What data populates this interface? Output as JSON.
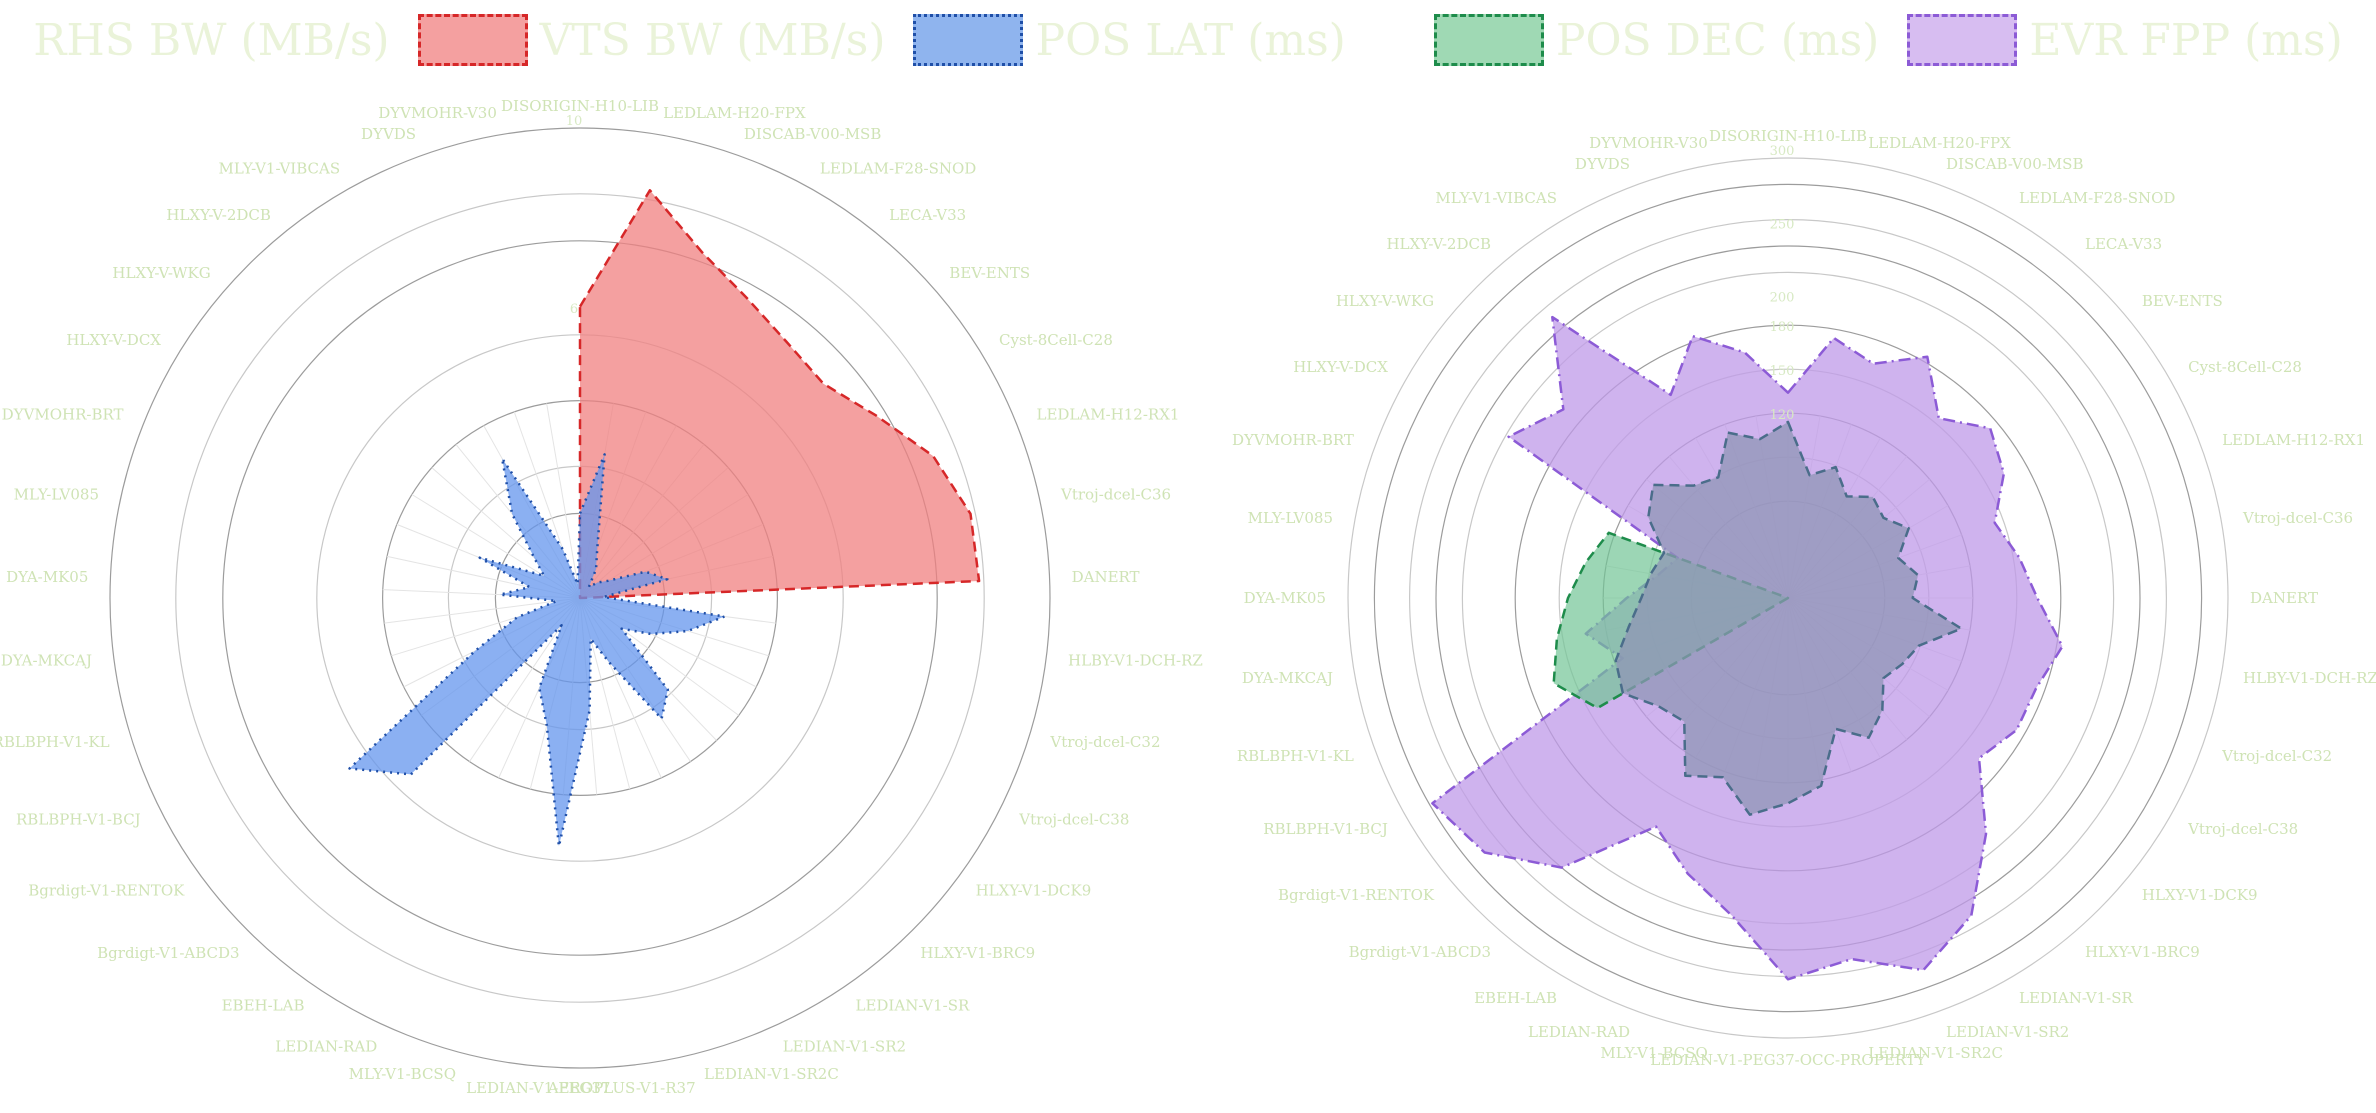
{
  "colors": {
    "series_red": "#f08080",
    "series_red_line": "#d62728",
    "series_blue": "#6495ed",
    "series_blue_line": "#1f4fa8",
    "series_green": "#72c495",
    "series_green_line": "#1e8c4b",
    "series_purple": "#bf99e8",
    "series_purple_line": "#8c5bd6",
    "grid": "#bdbdbd",
    "label_text": "#cfe3b5"
  },
  "legend": [
    {
      "label": "RHS BW (MB/s)",
      "color_key": "red",
      "swatch": false
    },
    {
      "label": "VTS BW (MB/s)",
      "color_key": "red",
      "swatch": true
    },
    {
      "label": "POS LAT (ms)",
      "color_key": "blue",
      "swatch": true
    },
    {
      "label": "POS DEC (ms)",
      "color_key": "green",
      "swatch": true
    },
    {
      "label": "EVR FPP (ms)",
      "color_key": "purple",
      "swatch": true
    }
  ],
  "chart_data": [
    {
      "type": "radar",
      "title": "",
      "categories": [
        "DISORIGIN-H10-LIB",
        "LEDLAM-H20-FPX",
        "DISCAB-V00-MSB",
        "LEDLAM-F28-SNOD",
        "LECA-V33",
        "BEV-ENTS",
        "Cyst-8Cell-C28",
        "LEDLAM-H12-RX1",
        "Vtroj-dcel-C36",
        "DANERT",
        "HLBY-V1-DCH-RZ",
        "Vtroj-dcel-C32",
        "Vtroj-dcel-C38",
        "HLXY-V1-DCK9",
        "HLXY-V1-BRC9",
        "LEDIAN-V1-SR",
        "LEDIAN-V1-SR2",
        "LEDIAN-V1-SR2C",
        "AEROPLUS-V1-R37",
        "LEDIAN-V1-PEG37",
        "MLY-V1-BCSQ",
        "LEDIAN-RAD",
        "EBEH-LAB",
        "Bgrdigt-V1-ABCD3",
        "Bgrdigt-V1-RENTOK",
        "RBLBPH-V1-BCJ",
        "RBLBPH-V1-KL",
        "DYA-MKCAJ",
        "DYA-MK05",
        "MLY-LV085",
        "DYVMOHR-BRT",
        "HLXY-V-DCX",
        "HLXY-V-WKG",
        "HLXY-V-2DCB",
        "MLY-V1-VIBCAS",
        "DYVDS",
        "DYVMOHR-V30"
      ],
      "rlim": [
        0,
        10
      ],
      "rticks": [
        {
          "value": 6,
          "label": "6"
        },
        {
          "value": 10,
          "label": "10"
        }
      ],
      "grid": true,
      "series": [
        {
          "name": "VTS BW (MB/s)",
          "color_key": "red",
          "values": [
            6.2,
            8.8,
            7.8,
            7.3,
            7.0,
            6.9,
            7.4,
            8.1,
            8.5,
            8.5,
            0,
            0,
            0,
            0,
            0,
            0,
            0,
            0,
            0,
            0,
            0,
            0,
            0,
            0,
            0,
            0,
            0,
            0,
            0,
            0,
            0,
            0,
            0,
            0,
            0,
            0,
            0
          ]
        },
        {
          "name": "POS LAT (ms)",
          "color_key": "blue",
          "values": [
            1.8,
            3.1,
            1.1,
            0.7,
            0.3,
            0.5,
            0.7,
            1.5,
            1.9,
            0.5,
            3.1,
            2.4,
            1.7,
            1.1,
            2.7,
            3.1,
            1.5,
            0.9,
            2.4,
            5.3,
            2.8,
            2.1,
            0.7,
            5.2,
            6.1,
            2.5,
            1.4,
            0.5,
            1.7,
            1.1,
            2.3,
            0.9,
            1.3,
            2.3,
            3.4,
            1.1,
            0.3
          ]
        }
      ]
    },
    {
      "type": "radar",
      "title": "",
      "categories": [
        "DISORIGIN-H10-LIB",
        "LEDLAM-H20-FPX",
        "DISCAB-V00-MSB",
        "LEDLAM-F28-SNOD",
        "LECA-V33",
        "BEV-ENTS",
        "Cyst-8Cell-C28",
        "LEDLAM-H12-RX1",
        "Vtroj-dcel-C36",
        "DANERT",
        "HLBY-V1-DCH-RZ",
        "Vtroj-dcel-C32",
        "Vtroj-dcel-C38",
        "HLXY-V1-DCK9",
        "HLXY-V1-BRC9",
        "LEDIAN-V1-SR",
        "LEDIAN-V1-SR2",
        "LEDIAN-V1-SR2C",
        "LEDIAN-V1-PEG37-OCC-PROPERTY",
        "MLY-V1-BCSQ",
        "LEDIAN-RAD",
        "EBEH-LAB",
        "Bgrdigt-V1-ABCD3",
        "Bgrdigt-V1-RENTOK",
        "RBLBPH-V1-BCJ",
        "RBLBPH-V1-KL",
        "DYA-MKCAJ",
        "DYA-MK05",
        "MLY-LV085",
        "DYVMOHR-BRT",
        "HLXY-V-DCX",
        "HLXY-V-WKG",
        "HLXY-V-2DCB",
        "MLY-V1-VIBCAS",
        "DYVDS",
        "DYVMOHR-V30"
      ],
      "rlim": [
        0,
        300
      ],
      "rticks": [
        {
          "value": 300,
          "label": "300"
        },
        {
          "value": 250,
          "label": "250"
        },
        {
          "value": 200,
          "label": "200"
        },
        {
          "value": 180,
          "label": "180"
        },
        {
          "value": 150,
          "label": "150"
        },
        {
          "value": 120,
          "label": "120"
        }
      ],
      "grid": true,
      "series": [
        {
          "name": "EVR FPP (ms)",
          "color_key": "purple",
          "values": [
            140,
            180,
            170,
            190,
            160,
            180,
            170,
            150,
            160,
            170,
            190,
            180,
            180,
            170,
            210,
            250,
            270,
            250,
            260,
            220,
            200,
            180,
            240,
            270,
            280,
            120,
            140,
            110,
            90,
            80,
            220,
            200,
            250,
            160,
            190,
            170
          ]
        },
        {
          "name": "POS DEC (ms)",
          "color_key": "green",
          "values": [
            0,
            0,
            0,
            0,
            0,
            0,
            0,
            0,
            0,
            0,
            0,
            0,
            0,
            0,
            0,
            0,
            0,
            0,
            0,
            0,
            0,
            0,
            0,
            0,
            150,
            170,
            160,
            150,
            140,
            130,
            0,
            0,
            0,
            0,
            0,
            0
          ]
        },
        {
          "name": "POS LAT (ms)",
          "color_key": "slate",
          "values": [
            120,
            85,
            95,
            80,
            90,
            85,
            95,
            80,
            90,
            85,
            120,
            95,
            90,
            85,
            100,
            110,
            95,
            130,
            140,
            150,
            130,
            140,
            110,
            115,
            130,
            125,
            110,
            100,
            95,
            90,
            110,
            120,
            100,
            95,
            120,
            110
          ]
        }
      ]
    }
  ]
}
